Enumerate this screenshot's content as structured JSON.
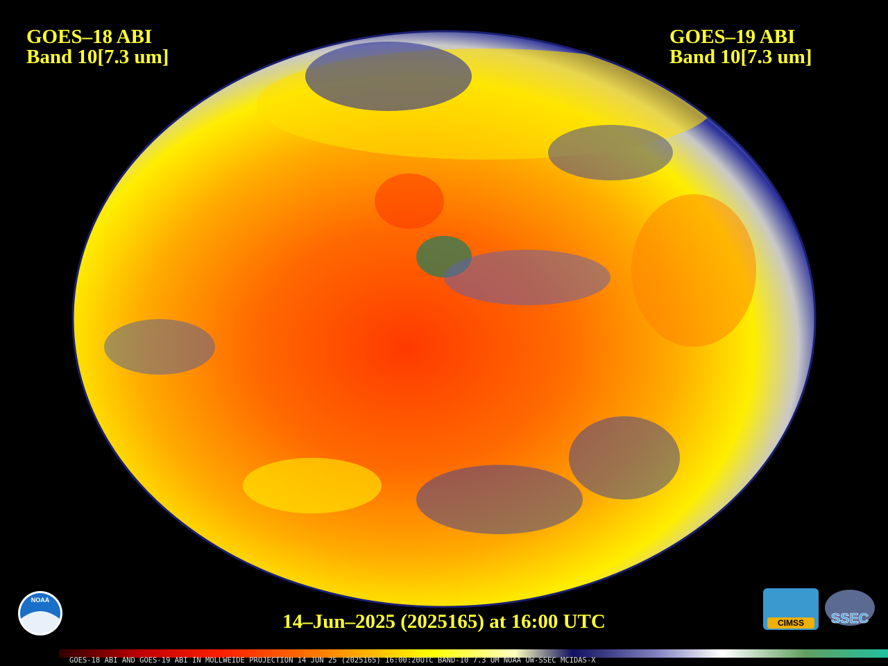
{
  "labels": {
    "left": {
      "satellite": "GOES–18 ABI",
      "band": "Band 10[7.3 um]"
    },
    "right": {
      "satellite": "GOES–19 ABI",
      "band": "Band 10[7.3 um]"
    }
  },
  "timestamp": "14–Jun–2025 (2025165) at 16:00 UTC",
  "colorbar_caption": "GOES-18 ABI AND GOES-19 ABI IN MOLLWEIDE PROJECTION 14 JUN 25 (2025165) 16:00:20UTC BAND-10 7.3 UM NOAA UW-SSEC MCIDAS-X",
  "logos": {
    "noaa": "NOAA",
    "cimss": "CIMSS",
    "ssec": "SSEC"
  }
}
